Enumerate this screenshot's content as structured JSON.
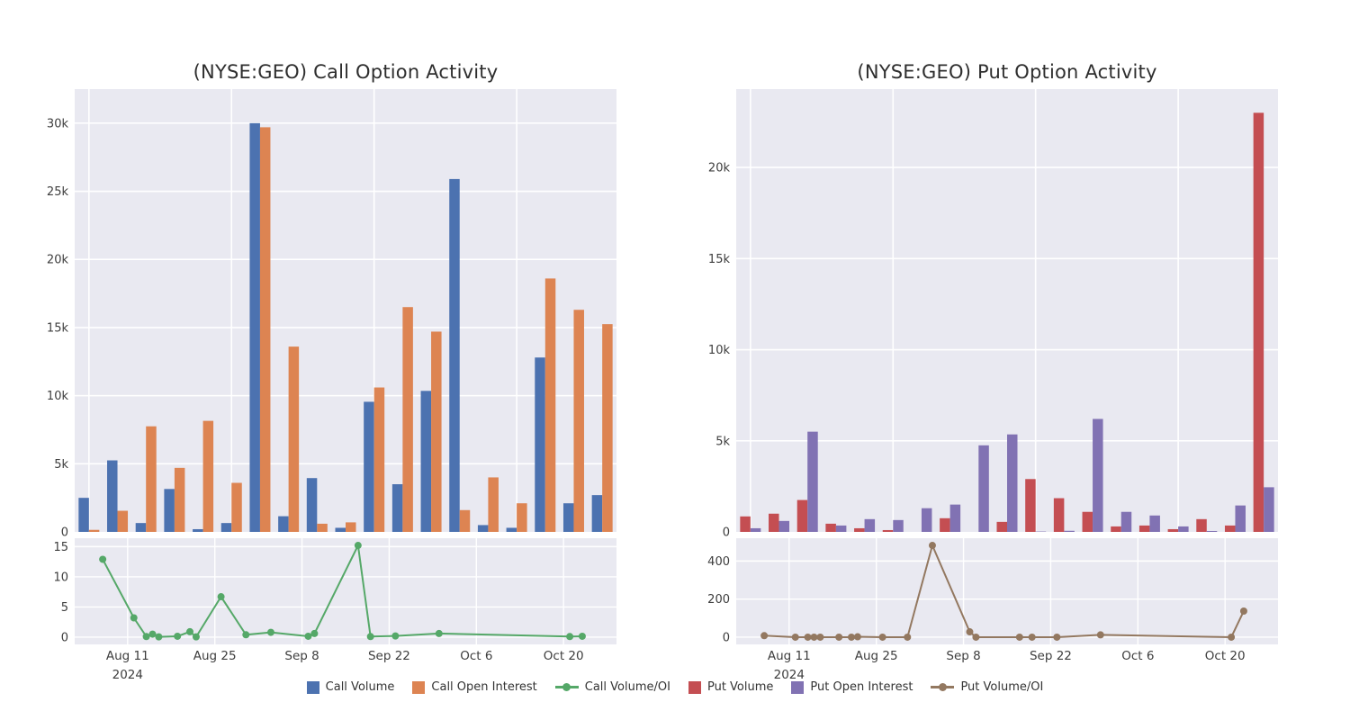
{
  "style": {
    "plot_bg": "#e9e9f1",
    "grid_color": "#ffffff",
    "tick_text_color": "#3d3d3d",
    "title_color": "#2e2e2e"
  },
  "x_axis": {
    "type": "date",
    "day_range": [
      1.5,
      88.5
    ],
    "category_days": [
      6,
      11,
      13,
      14,
      15,
      18,
      20,
      21,
      25,
      29,
      33,
      39,
      40,
      47,
      49,
      53,
      60,
      81,
      83
    ],
    "ticks": [
      {
        "label": "Aug 11",
        "year": "2024",
        "day": 10
      },
      {
        "label": "Aug 25",
        "day": 24
      },
      {
        "label": "Sep 8",
        "day": 38
      },
      {
        "label": "Sep 22",
        "day": 52
      },
      {
        "label": "Oct 6",
        "day": 66
      },
      {
        "label": "Oct 20",
        "day": 80
      }
    ]
  },
  "chart_data": [
    {
      "type": "bar",
      "subplot_type": "line",
      "title": "(NYSE:GEO) Call Option Activity",
      "categories": [
        "Aug 7",
        "Aug 12",
        "Aug 14",
        "Aug 15",
        "Aug 16",
        "Aug 19",
        "Aug 21",
        "Aug 22",
        "Aug 26",
        "Aug 30",
        "Sep 3",
        "Sep 9",
        "Sep 10",
        "Sep 17",
        "Sep 19",
        "Sep 23",
        "Sep 30",
        "Oct 21",
        "Oct 23"
      ],
      "series": [
        {
          "name": "Call Volume",
          "type": "bar",
          "axis": "main",
          "color": "#4c72b0",
          "values": [
            2500,
            5250,
            650,
            3150,
            200,
            650,
            30000,
            1150,
            3950,
            300,
            9550,
            3500,
            10350,
            25900,
            500,
            300,
            12800,
            2100,
            2700
          ]
        },
        {
          "name": "Call Open Interest",
          "type": "bar",
          "axis": "main",
          "color": "#dd8452",
          "values": [
            150,
            1550,
            7750,
            4700,
            8150,
            3600,
            29700,
            13600,
            600,
            700,
            10600,
            16500,
            14700,
            1600,
            4000,
            2100,
            18600,
            16300,
            15250
          ]
        },
        {
          "name": "Call Volume/OI",
          "type": "line",
          "axis": "sub",
          "color": "#55a868",
          "values": [
            12.9,
            3.2,
            0.1,
            0.5,
            0.05,
            0.15,
            0.9,
            0.05,
            6.7,
            0.4,
            0.8,
            0.15,
            0.6,
            15.2,
            0.1,
            0.2,
            0.6,
            0.1,
            0.15
          ]
        }
      ],
      "main_axis": {
        "ylim": [
          0,
          32500
        ],
        "ticks": [
          0,
          5000,
          10000,
          15000,
          20000,
          25000,
          30000
        ],
        "tick_labels": [
          "0",
          "5k",
          "10k",
          "15k",
          "20k",
          "25k",
          "30k"
        ],
        "grid": true
      },
      "sub_axis": {
        "ylim": [
          -1.2,
          16.4
        ],
        "ticks": [
          0,
          5,
          10,
          15
        ],
        "tick_labels": [
          "0",
          "5",
          "10",
          "15"
        ],
        "grid": true
      }
    },
    {
      "type": "bar",
      "subplot_type": "line",
      "title": "(NYSE:GEO) Put Option Activity",
      "categories": [
        "Aug 7",
        "Aug 12",
        "Aug 14",
        "Aug 15",
        "Aug 16",
        "Aug 19",
        "Aug 21",
        "Aug 22",
        "Aug 26",
        "Aug 30",
        "Sep 3",
        "Sep 9",
        "Sep 10",
        "Sep 17",
        "Sep 19",
        "Sep 23",
        "Sep 30",
        "Oct 21",
        "Oct 23"
      ],
      "series": [
        {
          "name": "Put Volume",
          "type": "bar",
          "axis": "main",
          "color": "#c44e52",
          "values": [
            850,
            1000,
            1750,
            450,
            200,
            100,
            0,
            750,
            0,
            550,
            2900,
            1850,
            1100,
            300,
            350,
            150,
            700,
            350,
            23000
          ]
        },
        {
          "name": "Put Open Interest",
          "type": "bar",
          "axis": "main",
          "color": "#8172b3",
          "values": [
            200,
            600,
            5500,
            350,
            700,
            650,
            1300,
            1500,
            4750,
            5350,
            20,
            60,
            6200,
            1100,
            900,
            300,
            50,
            1450,
            2450
          ]
        },
        {
          "name": "Put Volume/OI",
          "type": "line",
          "axis": "sub",
          "color": "#937860",
          "values": [
            8,
            0,
            0,
            0,
            0,
            0,
            0,
            2,
            0,
            0,
            482,
            28,
            0,
            0,
            0,
            0,
            12,
            0,
            137
          ]
        }
      ],
      "main_axis": {
        "ylim": [
          0,
          24300
        ],
        "ticks": [
          0,
          5000,
          10000,
          15000,
          20000
        ],
        "tick_labels": [
          "0",
          "5k",
          "10k",
          "15k",
          "20k"
        ],
        "grid": true
      },
      "sub_axis": {
        "ylim": [
          -38,
          520
        ],
        "ticks": [
          0,
          200,
          400
        ],
        "tick_labels": [
          "0",
          "200",
          "400"
        ],
        "grid": true
      }
    }
  ],
  "legend": {
    "items": [
      {
        "label": "Call Volume",
        "marker": "square",
        "color": "#4c72b0"
      },
      {
        "label": "Call Open Interest",
        "marker": "square",
        "color": "#dd8452"
      },
      {
        "label": "Call Volume/OI",
        "marker": "line",
        "color": "#55a868"
      },
      {
        "label": "Put Volume",
        "marker": "square",
        "color": "#c44e52"
      },
      {
        "label": "Put Open Interest",
        "marker": "square",
        "color": "#8172b3"
      },
      {
        "label": "Put Volume/OI",
        "marker": "line",
        "color": "#937860"
      }
    ]
  }
}
